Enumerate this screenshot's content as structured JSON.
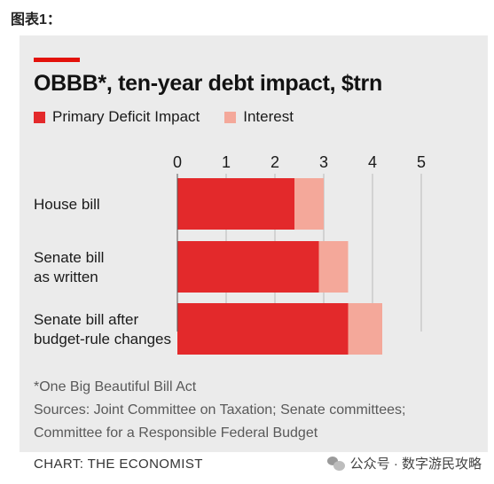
{
  "figure_label": "图表1：",
  "colors": {
    "accent": "#e3120b",
    "primary_deficit": "#e3292b",
    "interest": "#f4a89a",
    "panel": "#ebebeb",
    "gridline": "#b8b8b8"
  },
  "chart_data": {
    "type": "bar",
    "orientation": "horizontal",
    "stacked": true,
    "title": "OBBB*, ten-year debt impact, $trn",
    "categories": [
      "House bill",
      "Senate bill as written",
      "Senate bill after budget-rule changes"
    ],
    "category_lines": [
      [
        "House bill"
      ],
      [
        "Senate bill",
        "as written"
      ],
      [
        "Senate bill after",
        "budget-rule changes"
      ]
    ],
    "series": [
      {
        "name": "Primary Deficit Impact",
        "values": [
          2.4,
          2.9,
          3.5
        ]
      },
      {
        "name": "Interest",
        "values": [
          0.6,
          0.6,
          0.7
        ]
      }
    ],
    "xlim": [
      0,
      5
    ],
    "xticks": [
      0,
      1,
      2,
      3,
      4,
      5
    ],
    "xlabel": "",
    "ylabel": "",
    "grid": true,
    "legend_position": "top-left"
  },
  "notes": {
    "footnote": "*One Big Beautiful Bill Act",
    "sources_line1": "Sources: Joint Committee on Taxation; Senate committees;",
    "sources_line2": "Committee for a Responsible Federal Budget"
  },
  "credit": "CHART: THE ECONOMIST",
  "watermark": {
    "icon": "wechat-icon",
    "text": "公众号 · 数字游民攻略"
  }
}
